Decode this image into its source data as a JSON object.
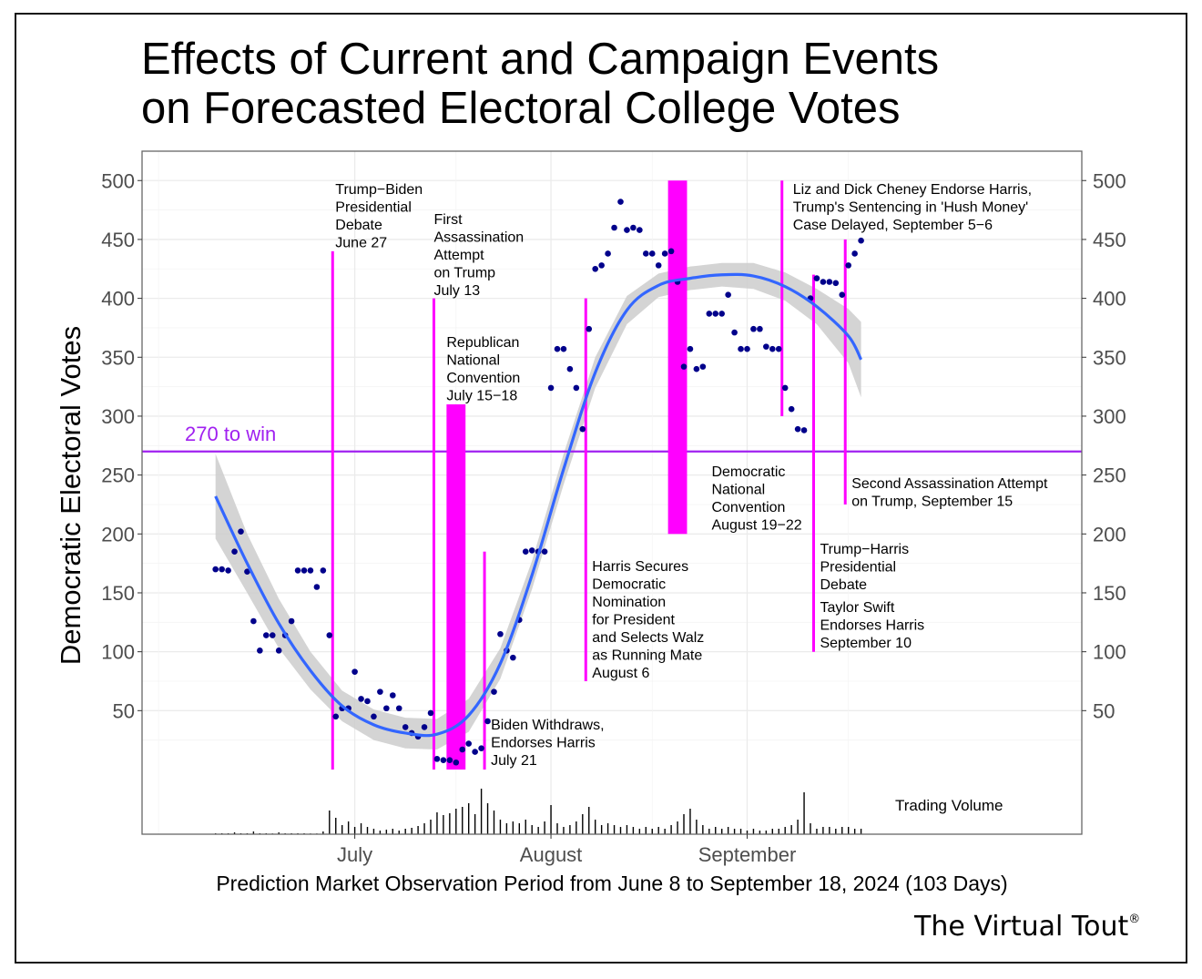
{
  "title": "Effects of Current and Campaign Events\non Forecasted Electoral College Votes",
  "brand": {
    "name": "The Virtual Tout",
    "mark": "®"
  },
  "chart_data": {
    "type": "scatter",
    "title": "Effects of Current and Campaign Events on Forecasted Electoral College Votes",
    "xlabel": "Prediction Market Observation Period from June 8 to September 18, 2024 (103 Days)",
    "ylabel": "Democratic Electoral Votes",
    "ylim": [
      0,
      520
    ],
    "yticks": [
      50,
      100,
      150,
      200,
      250,
      300,
      350,
      400,
      450,
      500
    ],
    "x_tick_labels": [
      {
        "day": 23,
        "label": "July"
      },
      {
        "day": 54,
        "label": "August"
      },
      {
        "day": 85,
        "label": "September"
      }
    ],
    "threshold": {
      "value": 270,
      "label": "270 to win",
      "color": "#a020f0"
    },
    "points_color": "#00008b",
    "trend_color": "#3366ff",
    "band_color": "#cccccc",
    "event_color": "#ff00ff",
    "volume_label": "Trading Volume",
    "points": [
      [
        1,
        170
      ],
      [
        2,
        170
      ],
      [
        3,
        169
      ],
      [
        4,
        185
      ],
      [
        5,
        202
      ],
      [
        6,
        168
      ],
      [
        7,
        126
      ],
      [
        8,
        101
      ],
      [
        9,
        114
      ],
      [
        10,
        114
      ],
      [
        11,
        101
      ],
      [
        12,
        114
      ],
      [
        13,
        126
      ],
      [
        14,
        169
      ],
      [
        15,
        169
      ],
      [
        16,
        169
      ],
      [
        17,
        155
      ],
      [
        18,
        169
      ],
      [
        19,
        114
      ],
      [
        20,
        45
      ],
      [
        21,
        52
      ],
      [
        22,
        52
      ],
      [
        23,
        83
      ],
      [
        24,
        60
      ],
      [
        25,
        58
      ],
      [
        26,
        45
      ],
      [
        27,
        66
      ],
      [
        28,
        52
      ],
      [
        29,
        63
      ],
      [
        30,
        52
      ],
      [
        31,
        36
      ],
      [
        32,
        31
      ],
      [
        33,
        28
      ],
      [
        34,
        36
      ],
      [
        35,
        48
      ],
      [
        36,
        9
      ],
      [
        37,
        8
      ],
      [
        38,
        8
      ],
      [
        39,
        6
      ],
      [
        40,
        17
      ],
      [
        41,
        22
      ],
      [
        42,
        15
      ],
      [
        43,
        18
      ],
      [
        44,
        41
      ],
      [
        45,
        66
      ],
      [
        46,
        115
      ],
      [
        47,
        101
      ],
      [
        48,
        95
      ],
      [
        49,
        127
      ],
      [
        50,
        185
      ],
      [
        51,
        186
      ],
      [
        52,
        185
      ],
      [
        53,
        185
      ],
      [
        54,
        324
      ],
      [
        55,
        357
      ],
      [
        56,
        357
      ],
      [
        57,
        340
      ],
      [
        58,
        324
      ],
      [
        59,
        289
      ],
      [
        60,
        374
      ],
      [
        61,
        425
      ],
      [
        62,
        428
      ],
      [
        63,
        438
      ],
      [
        64,
        460
      ],
      [
        65,
        482
      ],
      [
        66,
        458
      ],
      [
        67,
        460
      ],
      [
        68,
        458
      ],
      [
        69,
        438
      ],
      [
        70,
        438
      ],
      [
        71,
        428
      ],
      [
        72,
        438
      ],
      [
        73,
        440
      ],
      [
        74,
        414
      ],
      [
        75,
        342
      ],
      [
        76,
        357
      ],
      [
        77,
        340
      ],
      [
        78,
        342
      ],
      [
        79,
        387
      ],
      [
        80,
        387
      ],
      [
        81,
        387
      ],
      [
        82,
        403
      ],
      [
        83,
        371
      ],
      [
        84,
        357
      ],
      [
        85,
        357
      ],
      [
        86,
        374
      ],
      [
        87,
        374
      ],
      [
        88,
        359
      ],
      [
        89,
        357
      ],
      [
        90,
        357
      ],
      [
        91,
        324
      ],
      [
        92,
        306
      ],
      [
        93,
        289
      ],
      [
        94,
        288
      ],
      [
        95,
        400
      ],
      [
        96,
        417
      ],
      [
        97,
        414
      ],
      [
        98,
        414
      ],
      [
        99,
        413
      ],
      [
        100,
        403
      ],
      [
        101,
        428
      ],
      [
        102,
        438
      ],
      [
        103,
        449
      ]
    ],
    "trend": [
      [
        1,
        232
      ],
      [
        6,
        175
      ],
      [
        11,
        124
      ],
      [
        16,
        84
      ],
      [
        21,
        54
      ],
      [
        26,
        38
      ],
      [
        31,
        31
      ],
      [
        36,
        30
      ],
      [
        41,
        46
      ],
      [
        46,
        90
      ],
      [
        51,
        165
      ],
      [
        56,
        255
      ],
      [
        61,
        337
      ],
      [
        66,
        390
      ],
      [
        71,
        411
      ],
      [
        76,
        417
      ],
      [
        81,
        420
      ],
      [
        86,
        419
      ],
      [
        91,
        410
      ],
      [
        96,
        393
      ],
      [
        101,
        368
      ],
      [
        103,
        348
      ]
    ],
    "band_upper": [
      [
        1,
        268
      ],
      [
        6,
        200
      ],
      [
        11,
        145
      ],
      [
        16,
        100
      ],
      [
        21,
        67
      ],
      [
        26,
        51
      ],
      [
        31,
        44
      ],
      [
        36,
        43
      ],
      [
        41,
        60
      ],
      [
        46,
        103
      ],
      [
        51,
        177
      ],
      [
        56,
        268
      ],
      [
        61,
        350
      ],
      [
        66,
        402
      ],
      [
        71,
        421
      ],
      [
        76,
        427
      ],
      [
        81,
        430
      ],
      [
        86,
        430
      ],
      [
        91,
        422
      ],
      [
        96,
        408
      ],
      [
        101,
        391
      ],
      [
        103,
        380
      ]
    ],
    "band_lower": [
      [
        1,
        196
      ],
      [
        6,
        150
      ],
      [
        11,
        103
      ],
      [
        16,
        68
      ],
      [
        21,
        41
      ],
      [
        26,
        25
      ],
      [
        31,
        18
      ],
      [
        36,
        17
      ],
      [
        41,
        32
      ],
      [
        46,
        77
      ],
      [
        51,
        153
      ],
      [
        56,
        242
      ],
      [
        61,
        324
      ],
      [
        66,
        378
      ],
      [
        71,
        401
      ],
      [
        76,
        407
      ],
      [
        81,
        410
      ],
      [
        86,
        408
      ],
      [
        91,
        398
      ],
      [
        96,
        378
      ],
      [
        101,
        345
      ],
      [
        103,
        316
      ]
    ],
    "events": [
      {
        "x": 19.5,
        "x2": 19.5,
        "y_low": 0,
        "y_high": 440,
        "label": "Trump−Biden\nPresidential\nDebate\nJune 27"
      },
      {
        "x": 35.5,
        "x2": 35.5,
        "y_low": 0,
        "y_high": 400,
        "label": "First\nAssassination\nAttempt\non Trump\nJuly 13"
      },
      {
        "x": 37.5,
        "x2": 40.5,
        "y_low": 0,
        "y_high": 310,
        "label": "Republican\nNational\nConvention\nJuly 15−18"
      },
      {
        "x": 43.5,
        "x2": 43.5,
        "y_low": 0,
        "y_high": 185,
        "label": "Biden Withdraws,\nEndorses Harris\nJuly 21"
      },
      {
        "x": 59.5,
        "x2": 59.5,
        "y_low": 75,
        "y_high": 400,
        "label": "Harris Secures\nDemocratic\nNomination\nfor President\nand Selects Walz\nas Running Mate\nAugust 6"
      },
      {
        "x": 72.5,
        "x2": 75.5,
        "y_low": 200,
        "y_high": 500,
        "label": "Democratic\nNational\nConvention\nAugust 19−22"
      },
      {
        "x": 90.5,
        "x2": 90.5,
        "y_low": 300,
        "y_high": 500,
        "label": "Liz and Dick Cheney Endorse Harris,\nTrump's Sentencing in 'Hush Money'\nCase Delayed, September 5−6"
      },
      {
        "x": 95.5,
        "x2": 95.5,
        "y_low": 100,
        "y_high": 420,
        "label": "Trump−Harris\nPresidential\nDebate"
      },
      {
        "x": 95.5,
        "x2": 95.5,
        "y_low": 100,
        "y_high": 420,
        "label": "Taylor Swift\nEndorses Harris\nSeptember 10"
      },
      {
        "x": 100.5,
        "x2": 100.5,
        "y_low": 225,
        "y_high": 450,
        "label": "Second Assassination Attempt\non Trump, September 15"
      }
    ],
    "volume": [
      1,
      1,
      1,
      2,
      1,
      1,
      3,
      1,
      1,
      0,
      2,
      1,
      1,
      1,
      1,
      0,
      0,
      3,
      26,
      18,
      10,
      14,
      8,
      12,
      8,
      6,
      4,
      5,
      6,
      4,
      6,
      7,
      9,
      12,
      16,
      24,
      21,
      23,
      28,
      30,
      34,
      22,
      50,
      34,
      26,
      16,
      12,
      14,
      12,
      16,
      10,
      8,
      14,
      32,
      12,
      8,
      10,
      14,
      22,
      30,
      16,
      10,
      12,
      10,
      8,
      10,
      8,
      6,
      8,
      6,
      8,
      6,
      10,
      14,
      22,
      28,
      16,
      10,
      6,
      8,
      6,
      8,
      6,
      6,
      4,
      6,
      4,
      4,
      6,
      6,
      8,
      10,
      16,
      46,
      12,
      6,
      8,
      8,
      6,
      8,
      8,
      6,
      6
    ]
  }
}
